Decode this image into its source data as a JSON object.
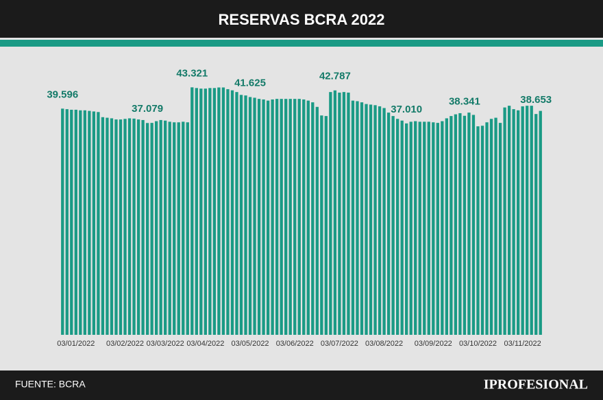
{
  "chart_data": {
    "type": "bar",
    "title": "RESERVAS BCRA 2022",
    "source": "FUENTE: BCRA",
    "brand": "IPROFESIONAL",
    "color": "#1a9a85",
    "label_color": "#137a68",
    "ylim": [
      0,
      46000
    ],
    "categories": [
      null,
      null,
      null,
      "03/01/2022",
      null,
      null,
      null,
      null,
      null,
      null,
      null,
      null,
      null,
      null,
      "03/02/2022",
      null,
      null,
      null,
      null,
      null,
      null,
      null,
      null,
      "03/03/2022",
      null,
      null,
      null,
      null,
      null,
      null,
      null,
      null,
      "03/04/2022",
      null,
      null,
      null,
      null,
      null,
      null,
      null,
      null,
      null,
      "03/05/2022",
      null,
      null,
      null,
      null,
      null,
      null,
      null,
      null,
      null,
      "03/06/2022",
      null,
      null,
      null,
      null,
      null,
      null,
      null,
      null,
      null,
      "03/07/2022",
      null,
      null,
      null,
      null,
      null,
      null,
      null,
      null,
      null,
      "03/08/2022",
      null,
      null,
      null,
      null,
      null,
      null,
      null,
      null,
      null,
      null,
      "03/09/2022",
      null,
      null,
      null,
      null,
      null,
      null,
      null,
      null,
      null,
      "03/10/2022",
      null,
      null,
      null,
      null,
      null,
      null,
      null,
      null,
      null,
      "03/11/2022",
      null,
      null,
      null,
      null
    ],
    "values": [
      39596,
      39500,
      39400,
      39400,
      39300,
      39300,
      39200,
      39100,
      39000,
      38100,
      38000,
      37900,
      37700,
      37700,
      37800,
      37900,
      37850,
      37700,
      37600,
      37079,
      37100,
      37400,
      37600,
      37500,
      37300,
      37200,
      37200,
      37300,
      37200,
      43321,
      43200,
      43100,
      43100,
      43200,
      43200,
      43300,
      43300,
      43000,
      42800,
      42500,
      42000,
      41900,
      41625,
      41500,
      41300,
      41200,
      41000,
      41200,
      41300,
      41300,
      41300,
      41300,
      41300,
      41300,
      41200,
      41000,
      40700,
      39900,
      38400,
      38300,
      42500,
      42787,
      42400,
      42500,
      42400,
      41000,
      40900,
      40700,
      40400,
      40300,
      40200,
      40000,
      39700,
      38900,
      38300,
      37800,
      37500,
      37010,
      37300,
      37400,
      37300,
      37300,
      37300,
      37200,
      37100,
      37400,
      37900,
      38300,
      38600,
      38800,
      38341,
      38900,
      38500,
      36500,
      36600,
      37200,
      37800,
      38000,
      37100,
      39800,
      40100,
      39500,
      39300,
      40000,
      40100,
      40100,
      38653,
      39200
    ],
    "value_labels": [
      "39.596",
      null,
      null,
      null,
      null,
      null,
      null,
      null,
      null,
      null,
      null,
      null,
      null,
      null,
      null,
      null,
      null,
      null,
      null,
      "37.079",
      null,
      null,
      null,
      null,
      null,
      null,
      null,
      null,
      null,
      "43.321",
      null,
      null,
      null,
      null,
      null,
      null,
      null,
      null,
      null,
      null,
      null,
      null,
      "41.625",
      null,
      null,
      null,
      null,
      null,
      null,
      null,
      null,
      null,
      null,
      null,
      null,
      null,
      null,
      null,
      null,
      null,
      null,
      "42.787",
      null,
      null,
      null,
      null,
      null,
      null,
      null,
      null,
      null,
      null,
      null,
      null,
      null,
      null,
      null,
      "37.010",
      null,
      null,
      null,
      null,
      null,
      null,
      null,
      null,
      null,
      null,
      null,
      null,
      "38.341",
      null,
      null,
      null,
      null,
      null,
      null,
      null,
      null,
      null,
      null,
      null,
      null,
      null,
      null,
      null,
      "38.653",
      null
    ]
  }
}
